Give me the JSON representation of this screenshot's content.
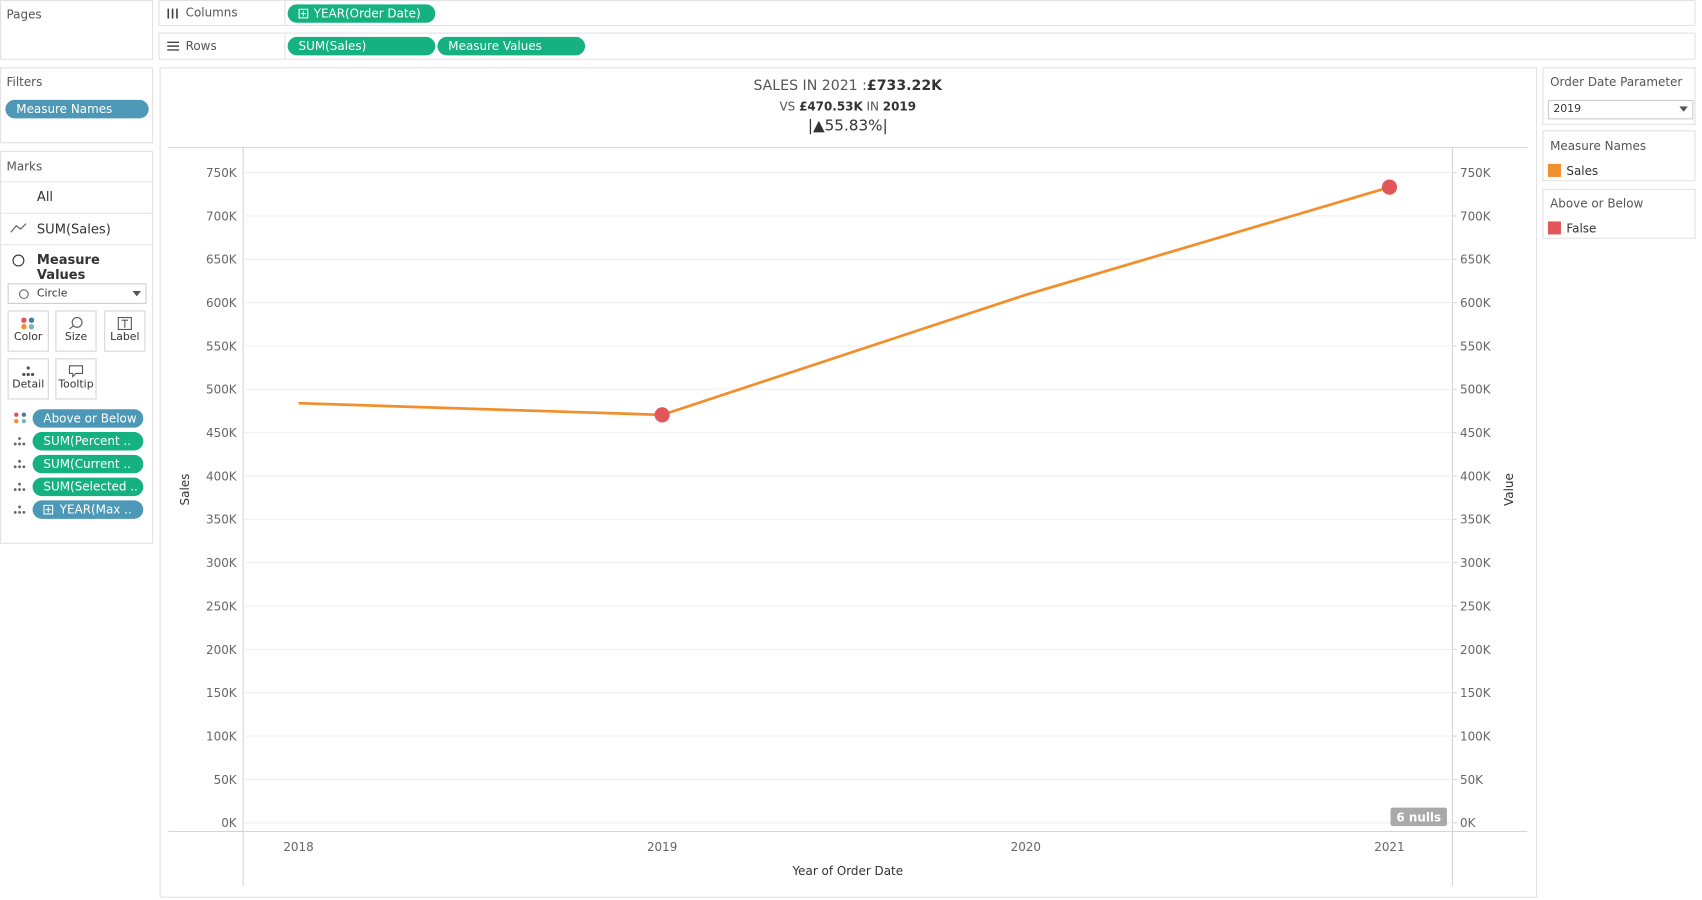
{
  "shelves": {
    "pages": "Pages",
    "columns": {
      "label": "Columns",
      "pills": [
        "YEAR(Order Date)"
      ]
    },
    "rows": {
      "label": "Rows",
      "pills": [
        "SUM(Sales)",
        "Measure Values"
      ]
    }
  },
  "filters": {
    "title": "Filters",
    "pills": [
      "Measure Names"
    ]
  },
  "marks": {
    "title": "Marks",
    "layers": [
      "All",
      "SUM(Sales)",
      "Measure Values"
    ],
    "mark_type": "Circle",
    "buttons": [
      "Color",
      "Size",
      "Label",
      "Detail",
      "Tooltip"
    ],
    "pills": [
      "Above or Below",
      "SUM(Percent ..",
      "SUM(Current ..",
      "SUM(Selected ..",
      "YEAR(Max .."
    ]
  },
  "parameter": {
    "title": "Order Date Parameter",
    "value": "2019"
  },
  "chart_data": {
    "type": "line",
    "title": {
      "text": "SALES IN 2021 :",
      "value": "£733.22K"
    },
    "subtitle": [
      "VS",
      "£470.53K",
      "IN",
      "2019"
    ],
    "change": "|▲55.83%|",
    "categories": [
      "2018",
      "2019",
      "2020",
      "2021"
    ],
    "xlabel": "Year of Order Date",
    "ylabel": "Sales",
    "y2label": "Value",
    "legend_titles": [
      "Measure Names",
      "Above or Below"
    ],
    "series": [
      {
        "name": "Sales",
        "color": "#f28e2b",
        "values": [
          484000,
          470530,
          609000,
          733220
        ]
      },
      {
        "name": "False",
        "color": "#e15759",
        "axis": "y2",
        "values": [
          null,
          470530,
          null,
          733220
        ]
      }
    ],
    "ylim": [
      0,
      750000
    ],
    "y2lim": [
      0,
      750000
    ],
    "yticks": [
      {
        "value": 0,
        "label": "0K"
      },
      {
        "value": 50000,
        "label": "50K"
      },
      {
        "value": 100000,
        "label": "100K"
      },
      {
        "value": 150000,
        "label": "150K"
      },
      {
        "value": 200000,
        "label": "200K"
      },
      {
        "value": 250000,
        "label": "250K"
      },
      {
        "value": 300000,
        "label": "300K"
      },
      {
        "value": 350000,
        "label": "350K"
      },
      {
        "value": 400000,
        "label": "400K"
      },
      {
        "value": 450000,
        "label": "450K"
      },
      {
        "value": 500000,
        "label": "500K"
      },
      {
        "value": 550000,
        "label": "550K"
      },
      {
        "value": 600000,
        "label": "600K"
      },
      {
        "value": 650000,
        "label": "650K"
      },
      {
        "value": 700000,
        "label": "700K"
      },
      {
        "value": 750000,
        "label": "750K"
      }
    ],
    "y2ticks": [
      {
        "value": 0,
        "label": "0K"
      },
      {
        "value": 50000,
        "label": "50K"
      },
      {
        "value": 100000,
        "label": "100K"
      },
      {
        "value": 150000,
        "label": "150K"
      },
      {
        "value": 200000,
        "label": "200K"
      },
      {
        "value": 250000,
        "label": "250K"
      },
      {
        "value": 300000,
        "label": "300K"
      },
      {
        "value": 350000,
        "label": "350K"
      },
      {
        "value": 400000,
        "label": "400K"
      },
      {
        "value": 450000,
        "label": "450K"
      },
      {
        "value": 500000,
        "label": "500K"
      },
      {
        "value": 550000,
        "label": "550K"
      },
      {
        "value": 600000,
        "label": "600K"
      },
      {
        "value": 650000,
        "label": "650K"
      },
      {
        "value": 700000,
        "label": "700K"
      },
      {
        "value": 750000,
        "label": "750K"
      }
    ],
    "grid": true,
    "annotation": "6 nulls"
  }
}
